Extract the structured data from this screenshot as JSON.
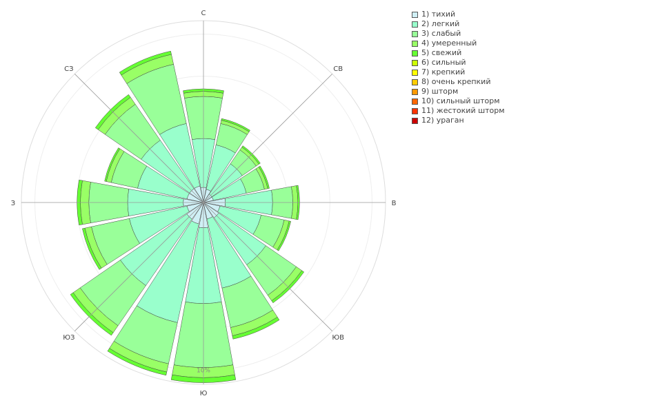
{
  "chart_data": {
    "type": "windrose",
    "direction_labels": [
      "С",
      "СВ",
      "В",
      "ЮВ",
      "Ю",
      "ЮЗ",
      "З",
      "СЗ"
    ],
    "radial_tick_label": "10%",
    "radial_max": 10.8,
    "legend_position": "right",
    "classes": [
      {
        "name": "1) тихий",
        "color": "#cfeff5"
      },
      {
        "name": "2) легкий",
        "color": "#99ffcc"
      },
      {
        "name": "3) слабый",
        "color": "#99ff99"
      },
      {
        "name": "4) умеренный",
        "color": "#99ff66"
      },
      {
        "name": "5) свежий",
        "color": "#66ff33"
      },
      {
        "name": "6) сильный",
        "color": "#ccff00"
      },
      {
        "name": "7) крепкий",
        "color": "#ffff00"
      },
      {
        "name": "8) очень крепкий",
        "color": "#ffcc00"
      },
      {
        "name": "9) шторм",
        "color": "#ff9900"
      },
      {
        "name": "10) сильный шторм",
        "color": "#ff6600"
      },
      {
        "name": "11) жестокий шторм",
        "color": "#ff3300"
      },
      {
        "name": "12) ураган",
        "color": "#cc0000"
      }
    ],
    "sectors": [
      {
        "dir": 0,
        "values": [
          0.9,
          2.9,
          2.5,
          0.3,
          0.15
        ]
      },
      {
        "dir": 22.5,
        "values": [
          0.8,
          2.7,
          1.3,
          0.2,
          0.1
        ]
      },
      {
        "dir": 45,
        "values": [
          0.6,
          2.2,
          1.0,
          0.2,
          0.1
        ]
      },
      {
        "dir": 67.5,
        "values": [
          0.6,
          2.0,
          1.1,
          0.2,
          0.1
        ]
      },
      {
        "dir": 90,
        "values": [
          1.3,
          2.8,
          1.2,
          0.3,
          0.1
        ]
      },
      {
        "dir": 112.5,
        "values": [
          1.0,
          2.5,
          1.4,
          0.3,
          0.1
        ]
      },
      {
        "dir": 135,
        "values": [
          1.1,
          3.4,
          2.2,
          0.4,
          0.15
        ]
      },
      {
        "dir": 157.5,
        "values": [
          1.0,
          4.2,
          2.4,
          0.5,
          0.2
        ]
      },
      {
        "dir": 180,
        "values": [
          1.5,
          4.5,
          3.8,
          0.6,
          0.3
        ]
      },
      {
        "dir": 202.5,
        "values": [
          1.3,
          6.0,
          2.5,
          0.5,
          0.2
        ]
      },
      {
        "dir": 225,
        "values": [
          1.2,
          4.8,
          2.9,
          0.5,
          0.2
        ]
      },
      {
        "dir": 247.5,
        "values": [
          1.0,
          3.5,
          2.3,
          0.4,
          0.15
        ]
      },
      {
        "dir": 270,
        "values": [
          1.2,
          3.3,
          2.3,
          0.5,
          0.2
        ]
      },
      {
        "dir": 292.5,
        "values": [
          1.0,
          3.0,
          1.6,
          0.3,
          0.1
        ]
      },
      {
        "dir": 315,
        "values": [
          1.0,
          3.5,
          2.6,
          0.5,
          0.2
        ]
      },
      {
        "dir": 337.5,
        "values": [
          1.0,
          3.8,
          3.6,
          0.6,
          0.2
        ]
      }
    ]
  }
}
